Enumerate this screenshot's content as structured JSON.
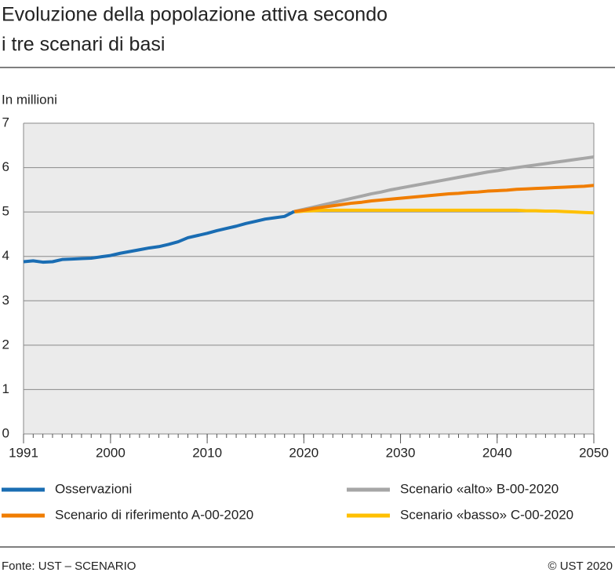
{
  "chart_data": {
    "type": "line",
    "title": [
      "Evoluzione della popolazione attiva secondo",
      "i tre scenari di basi"
    ],
    "y_label": "In millioni",
    "source": "Fonte: UST – SCENARIO",
    "copyright": "© UST 2020",
    "x": [
      1991,
      1992,
      1993,
      1994,
      1995,
      1996,
      1997,
      1998,
      1999,
      2000,
      2001,
      2002,
      2003,
      2004,
      2005,
      2006,
      2007,
      2008,
      2009,
      2010,
      2011,
      2012,
      2013,
      2014,
      2015,
      2016,
      2017,
      2018,
      2019,
      2020,
      2021,
      2022,
      2023,
      2024,
      2025,
      2026,
      2027,
      2028,
      2029,
      2030,
      2031,
      2032,
      2033,
      2034,
      2035,
      2036,
      2037,
      2038,
      2039,
      2040,
      2041,
      2042,
      2043,
      2044,
      2045,
      2046,
      2047,
      2048,
      2049,
      2050
    ],
    "xlim": [
      1991,
      2050
    ],
    "xticks": [
      1991,
      2000,
      2010,
      2020,
      2030,
      2040,
      2050
    ],
    "ylim": [
      0,
      7
    ],
    "yticks": [
      0,
      1,
      2,
      3,
      4,
      5,
      6,
      7
    ],
    "grid": true,
    "series": [
      {
        "name": "Osservazioni",
        "color": "#1a6db3",
        "values": [
          3.88,
          3.9,
          3.87,
          3.88,
          3.93,
          3.94,
          3.95,
          3.96,
          3.99,
          4.02,
          4.07,
          4.11,
          4.15,
          4.19,
          4.22,
          4.27,
          4.33,
          4.42,
          4.47,
          4.52,
          4.58,
          4.63,
          4.68,
          4.74,
          4.79,
          4.84,
          4.87,
          4.9,
          5.01,
          null,
          null,
          null,
          null,
          null,
          null,
          null,
          null,
          null,
          null,
          null,
          null,
          null,
          null,
          null,
          null,
          null,
          null,
          null,
          null,
          null,
          null,
          null,
          null,
          null,
          null,
          null,
          null,
          null,
          null,
          null
        ]
      },
      {
        "name": "Scenario «alto» B-00-2020",
        "color": "#a6a6a6",
        "values": [
          null,
          null,
          null,
          null,
          null,
          null,
          null,
          null,
          null,
          null,
          null,
          null,
          null,
          null,
          null,
          null,
          null,
          null,
          null,
          null,
          null,
          null,
          null,
          null,
          null,
          null,
          null,
          null,
          5.01,
          5.06,
          5.11,
          5.16,
          5.21,
          5.26,
          5.31,
          5.36,
          5.41,
          5.45,
          5.5,
          5.54,
          5.58,
          5.62,
          5.66,
          5.7,
          5.74,
          5.78,
          5.82,
          5.86,
          5.9,
          5.93,
          5.97,
          6.0,
          6.03,
          6.06,
          6.09,
          6.12,
          6.15,
          6.18,
          6.21,
          6.24
        ]
      },
      {
        "name": "Scenario di riferimento A-00-2020",
        "color": "#f07d00",
        "values": [
          null,
          null,
          null,
          null,
          null,
          null,
          null,
          null,
          null,
          null,
          null,
          null,
          null,
          null,
          null,
          null,
          null,
          null,
          null,
          null,
          null,
          null,
          null,
          null,
          null,
          null,
          null,
          null,
          5.01,
          5.04,
          5.08,
          5.11,
          5.14,
          5.17,
          5.2,
          5.22,
          5.25,
          5.27,
          5.29,
          5.31,
          5.33,
          5.35,
          5.37,
          5.39,
          5.41,
          5.42,
          5.44,
          5.45,
          5.47,
          5.48,
          5.49,
          5.51,
          5.52,
          5.53,
          5.54,
          5.55,
          5.56,
          5.57,
          5.58,
          5.6
        ]
      },
      {
        "name": "Scenario «basso» C-00-2020",
        "color": "#ffc000",
        "values": [
          null,
          null,
          null,
          null,
          null,
          null,
          null,
          null,
          null,
          null,
          null,
          null,
          null,
          null,
          null,
          null,
          null,
          null,
          null,
          null,
          null,
          null,
          null,
          null,
          null,
          null,
          null,
          null,
          5.0,
          5.02,
          5.03,
          5.04,
          5.04,
          5.04,
          5.04,
          5.04,
          5.04,
          5.04,
          5.04,
          5.04,
          5.04,
          5.04,
          5.04,
          5.04,
          5.04,
          5.04,
          5.04,
          5.04,
          5.04,
          5.04,
          5.04,
          5.04,
          5.03,
          5.03,
          5.02,
          5.02,
          5.01,
          5.0,
          4.99,
          4.98
        ]
      }
    ]
  }
}
